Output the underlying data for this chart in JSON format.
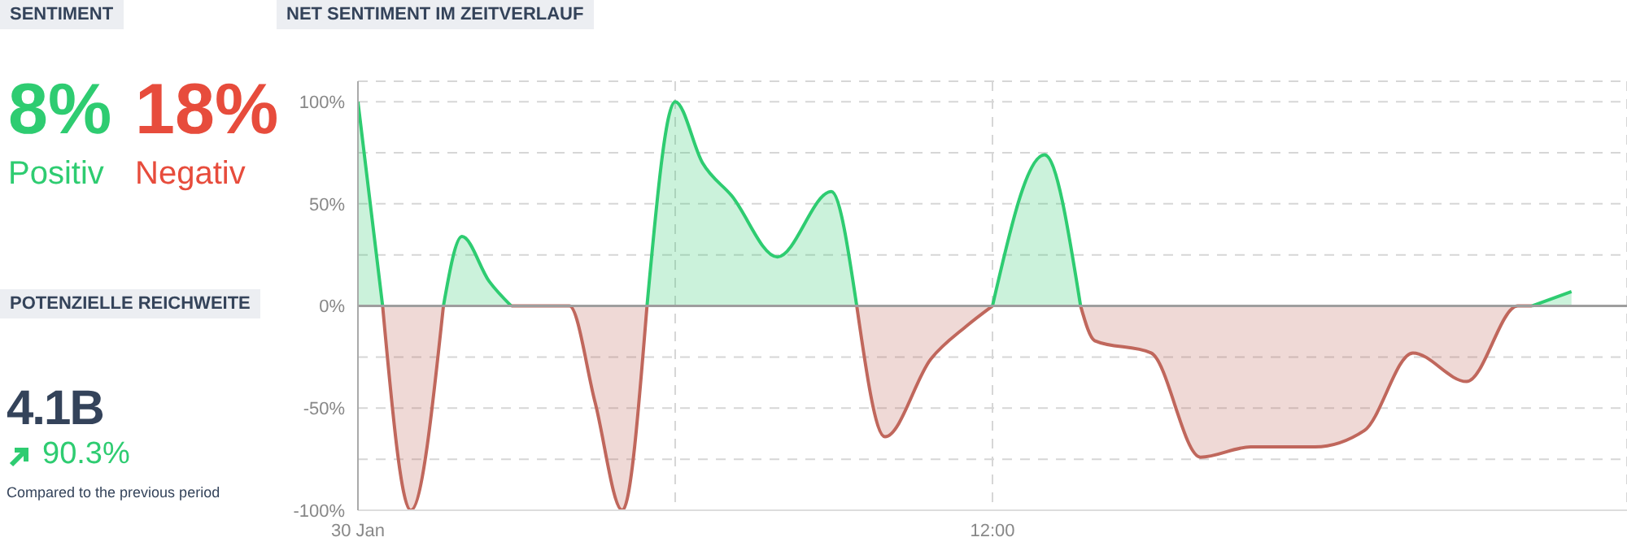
{
  "chart_data": [
    {
      "type": "other",
      "title": "SENTIMENT",
      "annotations": [
        "8%",
        "Positiv",
        "18%",
        "Negativ"
      ]
    },
    {
      "type": "other",
      "title": "POTENZIELLE REICHWEITE",
      "annotations": [
        "4.1B",
        "90.3%",
        "Compared to the previous period"
      ]
    },
    {
      "type": "area",
      "title": "NET SENTIMENT IM ZEITVERLAUF",
      "x": [
        "--01-30T00:00",
        "--01-30T00:28",
        "--01-30T01:00",
        "--01-30T01:37",
        "--01-30T01:58",
        "--01-30T02:29",
        "--01-30T02:54",
        "--01-30T04:00",
        "--01-30T04:29",
        "--01-30T05:00",
        "--01-30T05:28",
        "--01-30T06:00",
        "--01-30T06:31",
        "--01-30T07:04",
        "--01-30T07:56",
        "--01-30T08:57",
        "--01-30T09:26",
        "--01-30T09:58",
        "--01-30T10:50",
        "--01-30T11:30",
        "--01-30T12:00",
        "--01-30T12:59",
        "--01-30T13:40",
        "--01-30T13:56",
        "--01-30T15:00",
        "--01-30T15:56",
        "--01-30T16:53",
        "--01-30T18:06",
        "--01-30T19:02",
        "--01-30T19:57",
        "--01-30T20:58",
        "--01-30T21:56",
        "--01-30T22:12",
        "--01-30T22:57"
      ],
      "series": [
        {
          "color": "#2ecc71",
          "values": [
            100,
            0,
            null,
            0,
            34,
            12,
            0,
            null,
            null,
            null,
            0,
            100,
            70,
            54,
            24,
            56,
            0,
            null,
            null,
            null,
            0,
            74,
            0,
            null,
            null,
            null,
            null,
            null,
            null,
            null,
            null,
            null,
            0,
            7
          ]
        },
        {
          "color": "#c0675c",
          "values": [
            null,
            0,
            -100,
            0,
            null,
            null,
            0,
            0,
            -47,
            -100,
            0,
            null,
            null,
            null,
            null,
            null,
            0,
            -64,
            -26,
            -10,
            0,
            null,
            0,
            -17,
            -23,
            -74,
            -69,
            -69,
            -61,
            -23,
            -37,
            0,
            0,
            null
          ]
        }
      ],
      "xlim": [
        "--01-30T00:00",
        "--01-31T00:00"
      ],
      "xticks": [
        {
          "value": "--01-30T00:00",
          "label": "30 Jan"
        },
        {
          "value": "--01-30T06:00",
          "label": null
        },
        {
          "value": "--01-30T12:00",
          "label": "12:00"
        }
      ],
      "ylim": [
        -100,
        110
      ],
      "yticks": [
        {
          "value": -100,
          "label": "-100%"
        },
        {
          "value": -75,
          "label": null
        },
        {
          "value": -50,
          "label": "-50%"
        },
        {
          "value": -25,
          "label": null
        },
        {
          "value": 0,
          "label": "0%"
        },
        {
          "value": 25,
          "label": null
        },
        {
          "value": 50,
          "label": "50%"
        },
        {
          "value": 75,
          "label": null
        },
        {
          "value": 100,
          "label": "100%"
        }
      ],
      "grid": true,
      "ref_lines": [
        {
          "axis": "y",
          "value": 0,
          "color": "#9e9e9e"
        }
      ]
    }
  ]
}
